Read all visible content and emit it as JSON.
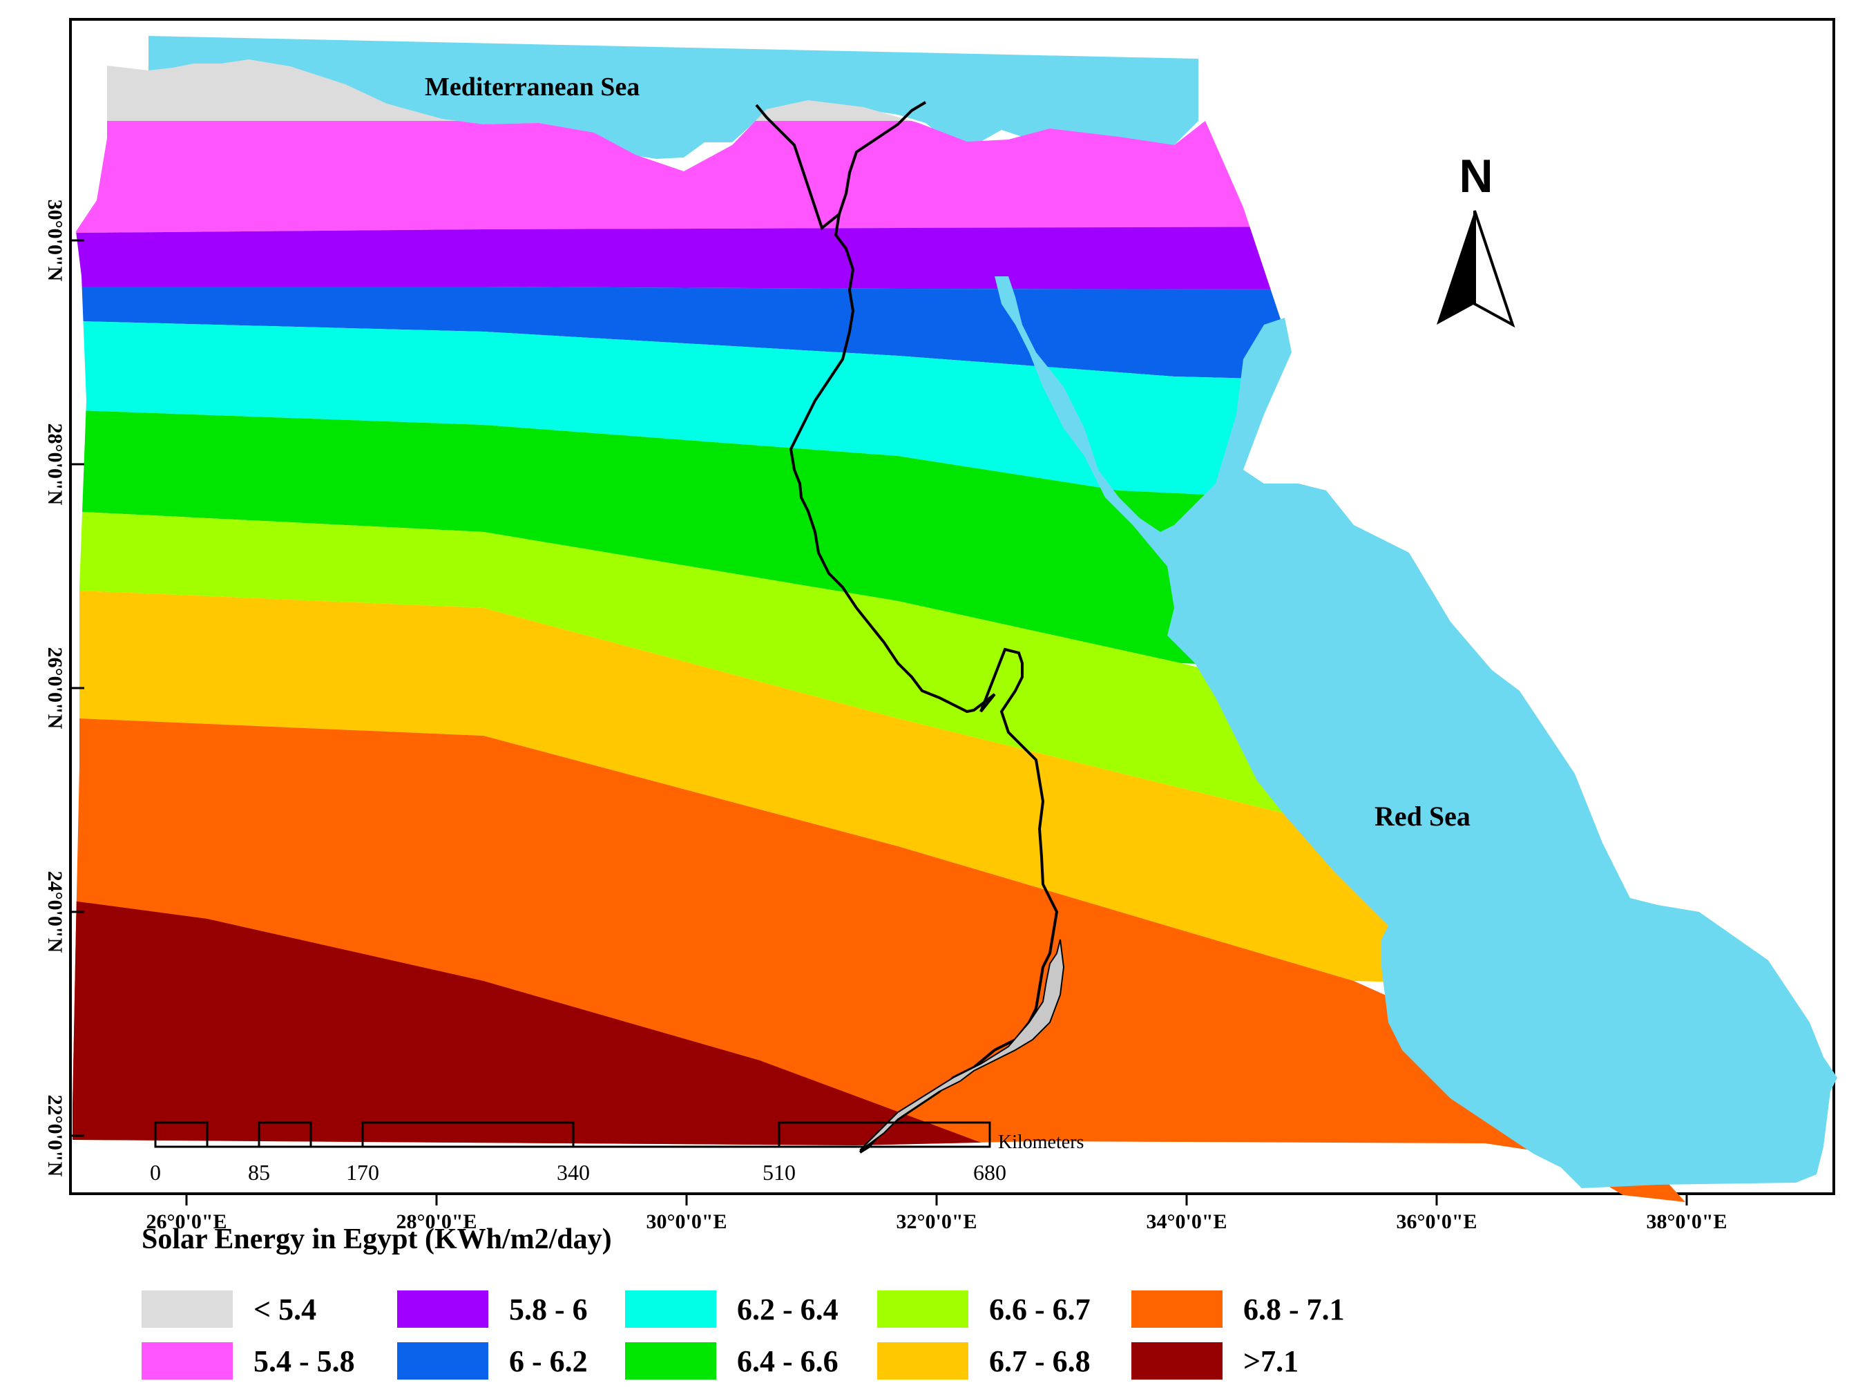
{
  "map": {
    "sea_labels": {
      "mediterranean": "Mediterranean Sea",
      "red": "Red Sea"
    },
    "north_arrow_label": "N",
    "latitude_ticks": [
      "30°0'0\"N",
      "28°0'0\"N",
      "26°0'0\"N",
      "24°0'0\"N",
      "22°0'0\"N"
    ],
    "longitude_ticks": [
      "26°0'0\"E",
      "28°0'0\"E",
      "30°0'0\"E",
      "32°0'0\"E",
      "34°0'0\"E",
      "36°0'0\"E",
      "38°0'0\"E"
    ],
    "scale_bar": {
      "ticks": [
        "0",
        "85",
        "170",
        "340",
        "510",
        "680"
      ],
      "unit": "Kilometers"
    },
    "colors": {
      "sea": "#6dd9f1",
      "nile": "#000000",
      "lake": "#c8c8c8"
    }
  },
  "legend": {
    "title": "Solar Energy in Egypt (KWh/m2/day)",
    "items": [
      {
        "label": "< 5.4",
        "color": "#dcdcdc"
      },
      {
        "label": "5.4 - 5.8",
        "color": "#ff55ff"
      },
      {
        "label": "5.8 - 6",
        "color": "#a000ff"
      },
      {
        "label": "6 - 6.2",
        "color": "#0b63ec"
      },
      {
        "label": "6.2 - 6.4",
        "color": "#00ffe6"
      },
      {
        "label": "6.4 - 6.6",
        "color": "#00e600"
      },
      {
        "label": "6.6 - 6.7",
        "color": "#a2ff00"
      },
      {
        "label": "6.7 - 6.8",
        "color": "#ffc800"
      },
      {
        "label": "6.8 - 7.1",
        "color": "#ff6400"
      },
      {
        "label": ">7.1",
        "color": "#960000"
      }
    ]
  }
}
